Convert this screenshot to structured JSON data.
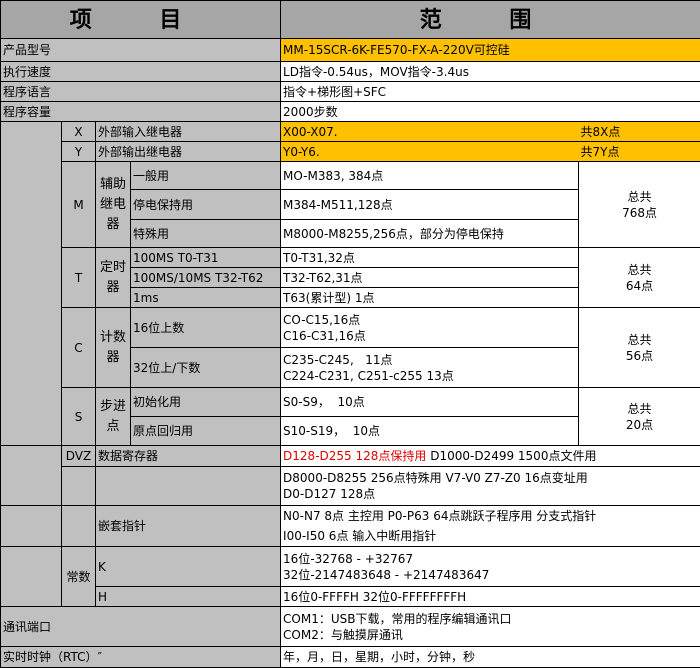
{
  "header": {
    "item": "项 目",
    "range": "范 围"
  },
  "rows": {
    "model": {
      "label": "产品型号",
      "value": "MM-15SCR-6K-FE570-FX-A-220V可控硅"
    },
    "speed": {
      "label": "执行速度",
      "value": "LD指令-0.54us，MOV指令-3.4us"
    },
    "language": {
      "label": "程序语言",
      "value": "指令+梯形图+SFC"
    },
    "capacity": {
      "label": "程序容量",
      "value": "2000步数"
    },
    "x": {
      "code": "X",
      "label": "外部输入继电器",
      "value": "X00-X07.",
      "total": "共8X点"
    },
    "y": {
      "code": "Y",
      "label": "外部输出继电器",
      "value": "Y0-Y6.",
      "total": "共7Y点"
    },
    "m": {
      "code": "M",
      "group": "辅助继电器",
      "total": "总共 768点",
      "items": [
        {
          "label": "一般用",
          "value": "MO-M383, 384点"
        },
        {
          "label": "停电保持用",
          "value": "M384-M511,128点"
        },
        {
          "label": "特殊用",
          "value": "M8000-M8255,256点，部分为停电保持"
        }
      ]
    },
    "t": {
      "code": "T",
      "group": "定时器",
      "total": "总共 64点",
      "items": [
        {
          "label": "100MS T0-T31",
          "value": "T0-T31,32点"
        },
        {
          "label": "100MS/10MS T32-T62",
          "value": "T32-T62,31点"
        },
        {
          "label": "1ms",
          "value": "T63(累计型) 1点"
        }
      ]
    },
    "c": {
      "code": "C",
      "group": "计数器",
      "total": "总共 56点",
      "items": [
        {
          "label": "16位上数",
          "value1": "CO-C15,16点",
          "value2": "C16-C31,16点"
        },
        {
          "label": "32位上/下数",
          "value1": "C235-C245,   11点",
          "value2": "C224-C231, C251-c255 13点"
        }
      ]
    },
    "s": {
      "code": "S",
      "group": "步进点",
      "total": "总共 20点",
      "items": [
        {
          "label": "初始化用",
          "value": "S0-S9，  10点"
        },
        {
          "label": "原点回归用",
          "value": "S10-S19，  10点"
        }
      ]
    },
    "dvz": {
      "code": "DVZ",
      "label": "数据寄存器",
      "value_red": "D128-D255 128点保持用",
      "value": " D1000-D2499 1500点文件用",
      "value2a": "D8000-D8255 256点特殊用 V7-V0 Z7-Z0 16点变址用",
      "value2b": "D0-D127 128点"
    },
    "pointer": {
      "label": "嵌套指针",
      "value1": "N0-N7 8点 主控用 P0-P63 64点跳跃子程序用 分支式指针",
      "value2": "I00-I50 6点 输入中断用指针"
    },
    "constant": {
      "label": "常数",
      "k": "K",
      "k1": "16位-32768 - +32767",
      "k2": "32位-2147483648 - +2147483647",
      "h": "H",
      "hv": "16位0-FFFFH 32位0-FFFFFFFFH"
    },
    "comm": {
      "label": "通讯端口",
      "value1": "COM1：USB下载，常用的程序编辑通讯口",
      "value2": "COM2：与触摸屏通讯"
    },
    "rtc": {
      "label": "实时时钟（RTC）″",
      "value": "年，月，日，星期，小时，分钟，秒"
    }
  }
}
